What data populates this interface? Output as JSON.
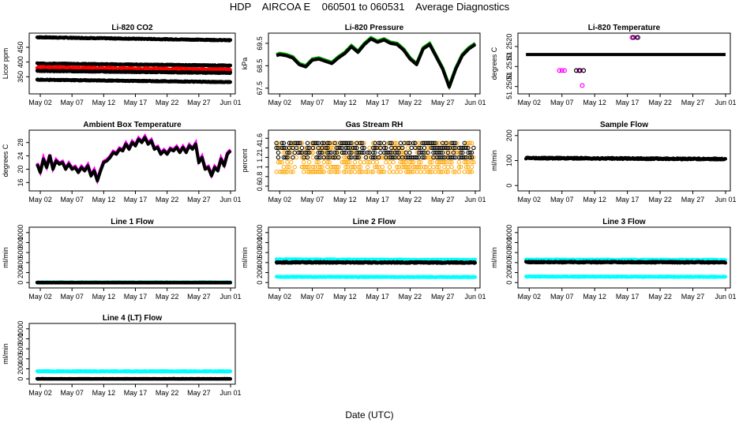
{
  "figure": {
    "title": "HDP    AIRCOA E    060501 to 060531    Average Diagnostics",
    "xlabel": "Date (UTC)",
    "x_tick_labels": [
      "May 02",
      "May 07",
      "May 12",
      "May 17",
      "May 22",
      "May 27",
      "Jun 01"
    ],
    "x_tick_days": [
      2,
      7,
      12,
      17,
      22,
      27,
      32
    ],
    "x_range_days": [
      1,
      32
    ]
  },
  "colors": {
    "black": "#000000",
    "red": "#ff0000",
    "green": "#00a000",
    "magenta": "#ff00ff",
    "orange": "#ffa500",
    "cyan": "#00ffff",
    "blue": "#0000ff"
  },
  "chart_data": [
    {
      "id": "co2",
      "type": "scatter",
      "title": "Li-820 CO2",
      "ylabel": "Licor ppm",
      "ylim": [
        300,
        490
      ],
      "yticks": [
        350,
        400,
        450
      ],
      "series": [
        {
          "name": "upper",
          "color": "black",
          "kind": "band",
          "start": 484,
          "end": 474,
          "noise": 1.5
        },
        {
          "name": "mid-high",
          "color": "black",
          "kind": "band",
          "start": 395,
          "end": 388,
          "noise": 1.5
        },
        {
          "name": "sample",
          "color": "red",
          "kind": "band",
          "start": 380,
          "end": 372,
          "noise": 5
        },
        {
          "name": "mid-low",
          "color": "black",
          "kind": "band",
          "start": 370,
          "end": 363,
          "noise": 1.5
        },
        {
          "name": "lower",
          "color": "black",
          "kind": "band",
          "start": 340,
          "end": 332,
          "noise": 1.5
        }
      ]
    },
    {
      "id": "pressure",
      "type": "line",
      "title": "Li-820 Pressure",
      "ylabel": "kPa",
      "ylim": [
        67.35,
        69.85
      ],
      "yticks": [
        67.5,
        68.5,
        69.5
      ],
      "ytick_labels": [
        "67.5",
        "68.5",
        "69.5"
      ],
      "series": [
        {
          "name": "pressure",
          "color": "black",
          "accent": "green",
          "x": [
            1.5,
            2,
            3,
            4,
            5,
            6,
            7,
            8,
            9,
            10,
            11,
            12,
            13,
            14,
            15,
            16,
            17,
            18,
            19,
            20,
            21,
            22,
            23,
            24,
            25,
            26,
            27,
            28,
            29,
            30,
            31,
            32
          ],
          "y": [
            68.95,
            69.0,
            68.95,
            68.85,
            68.55,
            68.45,
            68.75,
            68.8,
            68.7,
            68.6,
            68.85,
            69.05,
            69.35,
            69.1,
            69.45,
            69.7,
            69.55,
            69.65,
            69.5,
            69.45,
            69.2,
            68.8,
            68.55,
            69.25,
            69.45,
            68.9,
            68.35,
            67.55,
            68.35,
            68.95,
            69.25,
            69.45
          ]
        }
      ]
    },
    {
      "id": "licor_temp",
      "type": "scatter",
      "title": "Li-820 Temperature",
      "ylabel": "degrees C",
      "ylim": [
        51.24975,
        51.25255
      ],
      "yticks": [
        51.25,
        51.251,
        51.252
      ],
      "ytick_labels": [
        "51 2500",
        "51 2510",
        "51 2520"
      ],
      "series": [
        {
          "name": "main",
          "color": "black",
          "kind": "flat",
          "value": 51.2516
        },
        {
          "name": "outliers",
          "color": "magenta",
          "kind": "points",
          "x": [
            6.6,
            7.0,
            7.4,
            9.6,
            9.8,
            10.1,
            17.7,
            18.4
          ],
          "y": [
            51.2508,
            51.2508,
            51.2508,
            51.2508,
            51.2508,
            51.25005,
            51.25245,
            51.25245
          ]
        },
        {
          "name": "dark",
          "color": "black",
          "kind": "points",
          "x": [
            9.2,
            9.7,
            10.3,
            17.9,
            18.6
          ],
          "y": [
            51.2508,
            51.2508,
            51.2508,
            51.25245,
            51.25245
          ]
        }
      ]
    },
    {
      "id": "box_temp",
      "type": "line",
      "title": "Ambient Box Temperature",
      "ylabel": "degrees C",
      "ylim": [
        14.2,
        31
      ],
      "yticks": [
        16,
        20,
        24,
        28
      ],
      "series": [
        {
          "name": "box",
          "color": "black",
          "accent": "magenta",
          "x": [
            1.5,
            2,
            2.5,
            3,
            3.5,
            4,
            4.5,
            5,
            5.5,
            6,
            6.5,
            7,
            7.5,
            8,
            8.5,
            9,
            9.5,
            10,
            10.5,
            11,
            11.5,
            12,
            12.5,
            13,
            13.5,
            14,
            14.5,
            15,
            15.5,
            16,
            16.5,
            17,
            17.5,
            18,
            18.5,
            19,
            19.5,
            20,
            20.5,
            21,
            21.5,
            22,
            22.5,
            23,
            23.5,
            24,
            24.5,
            25,
            25.5,
            26,
            26.5,
            27,
            27.5,
            28,
            28.5,
            29,
            29.5,
            30,
            30.5,
            31,
            31.5,
            32
          ],
          "y": [
            21.5,
            19,
            23,
            20.5,
            24,
            20,
            22.5,
            21.5,
            22,
            20,
            21.5,
            20,
            20.5,
            19,
            20.5,
            19.5,
            21,
            18,
            19.5,
            16.5,
            19.5,
            22,
            22.5,
            23.5,
            25,
            24.5,
            26,
            25.5,
            27.5,
            26,
            28,
            27,
            29,
            28,
            29.5,
            27.5,
            28.5,
            26,
            26.5,
            24.5,
            25.5,
            24.5,
            26,
            25.5,
            26.5,
            25,
            26.5,
            25,
            27,
            26,
            27.5,
            22,
            23.5,
            20,
            20.5,
            18,
            20.5,
            19.5,
            23,
            21,
            24.5,
            25.5
          ]
        }
      ]
    },
    {
      "id": "rh",
      "type": "scatter",
      "title": "Gas Stream RH",
      "ylabel": "percent",
      "ylim": [
        0.55,
        1.72
      ],
      "yticks": [
        0.6,
        0.8,
        1.0,
        1.2,
        1.4,
        1.6
      ],
      "series": [
        {
          "name": "orange-scatter",
          "color": "orange",
          "kind": "cloud",
          "levels": [
            0.9,
            1.0,
            1.1,
            1.2,
            1.3,
            1.4,
            1.5
          ]
        },
        {
          "name": "black-levels",
          "color": "black",
          "kind": "cloud",
          "levels": [
            1.2,
            1.3,
            1.4,
            1.5
          ]
        }
      ]
    },
    {
      "id": "sample_flow",
      "type": "line",
      "title": "Sample Flow",
      "ylabel": "ml/min",
      "ylim": [
        -12,
        212
      ],
      "yticks": [
        0,
        100,
        200
      ],
      "series": [
        {
          "name": "sample",
          "color": "black",
          "accent": "blue",
          "kind": "band",
          "start": 110,
          "end": 106,
          "noise": 3
        }
      ]
    },
    {
      "id": "line1",
      "type": "scatter",
      "title": "Line 1 Flow",
      "ylabel": "ml/min",
      "ylim": [
        -60,
        1060
      ],
      "yticks": [
        0,
        200,
        400,
        600,
        800,
        1000
      ],
      "series": [
        {
          "name": "cyan",
          "color": "cyan",
          "kind": "band",
          "start": 4,
          "end": 4,
          "noise": 8
        },
        {
          "name": "black",
          "color": "black",
          "kind": "band",
          "start": 0,
          "end": 0,
          "noise": 3
        }
      ]
    },
    {
      "id": "line2",
      "type": "scatter",
      "title": "Line 2 Flow",
      "ylabel": "ml/min",
      "ylim": [
        -60,
        1060
      ],
      "yticks": [
        0,
        200,
        400,
        600,
        800,
        1000
      ],
      "series": [
        {
          "name": "cyan-high",
          "color": "cyan",
          "kind": "band",
          "start": 460,
          "end": 450,
          "noise": 12
        },
        {
          "name": "black",
          "color": "black",
          "kind": "band",
          "start": 405,
          "end": 400,
          "noise": 12
        },
        {
          "name": "cyan-low",
          "color": "cyan",
          "kind": "band",
          "start": 115,
          "end": 110,
          "noise": 8
        }
      ]
    },
    {
      "id": "line3",
      "type": "scatter",
      "title": "Line 3 Flow",
      "ylabel": "ml/min",
      "ylim": [
        -60,
        1060
      ],
      "yticks": [
        0,
        200,
        400,
        600,
        800,
        1000
      ],
      "series": [
        {
          "name": "cyan-high",
          "color": "cyan",
          "kind": "band",
          "start": 455,
          "end": 450,
          "noise": 12
        },
        {
          "name": "black",
          "color": "black",
          "kind": "band",
          "start": 410,
          "end": 405,
          "noise": 12
        },
        {
          "name": "cyan-low",
          "color": "cyan",
          "kind": "band",
          "start": 120,
          "end": 115,
          "noise": 8
        }
      ]
    },
    {
      "id": "line4",
      "type": "scatter",
      "title": "Line 4 (LT) Flow",
      "ylabel": "ml/min",
      "ylim": [
        -60,
        1060
      ],
      "yticks": [
        0,
        200,
        400,
        600,
        800,
        1000
      ],
      "series": [
        {
          "name": "cyan",
          "color": "cyan",
          "kind": "band",
          "start": 150,
          "end": 150,
          "noise": 8
        },
        {
          "name": "black",
          "color": "black",
          "kind": "band",
          "start": 0,
          "end": 0,
          "noise": 3
        }
      ]
    }
  ]
}
